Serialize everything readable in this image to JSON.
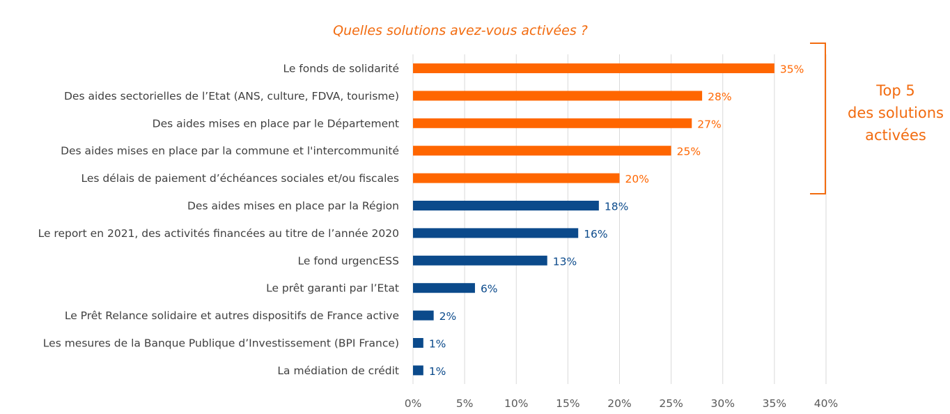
{
  "chart_data": {
    "type": "bar",
    "orientation": "horizontal",
    "title": "Quelles solutions avez-vous activées ?",
    "categories": [
      "Le fonds de solidarité",
      "Des aides sectorielles de l’Etat (ANS, culture, FDVA, tourisme)",
      "Des aides mises en place par le Département",
      "Des aides mises en place par la commune et l'intercommunité",
      "Les délais de paiement d’échéances sociales et/ou fiscales",
      "Des aides mises en place par la Région",
      "Le report en 2021, des activités financées au titre de l’année 2020",
      "Le fond urgencESS",
      "Le prêt garanti par l’Etat",
      "Le Prêt Relance solidaire et autres dispositifs de France active",
      "Les mesures de la Banque Publique d’Investissement (BPI France)",
      "La médiation de crédit"
    ],
    "values": [
      35,
      28,
      27,
      25,
      20,
      18,
      16,
      13,
      6,
      2,
      1,
      1
    ],
    "data_labels": [
      "35%",
      "28%",
      "27%",
      "25%",
      "20%",
      "18%",
      "16%",
      "13%",
      "6%",
      "2%",
      "1%",
      "1%"
    ],
    "highlight_count": 5,
    "colors": {
      "highlight": "#ff6600",
      "default": "#0b4a8b",
      "gridline": "#d9d9d9"
    },
    "xlim": [
      0,
      40
    ],
    "x_ticks": [
      "0%",
      "5%",
      "10%",
      "15%",
      "20%",
      "25%",
      "30%",
      "35%",
      "40%"
    ],
    "grid": true,
    "xlabel": "",
    "ylabel": "",
    "annotation": {
      "lines": [
        "Top 5",
        "des solutions",
        "activées"
      ]
    }
  }
}
